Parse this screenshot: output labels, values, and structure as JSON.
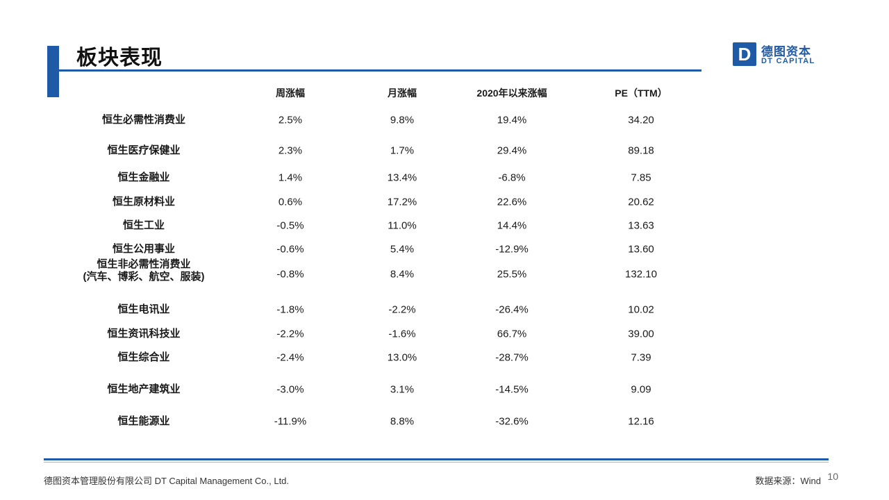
{
  "title": "板块表现",
  "logo": {
    "mark": "D",
    "cn": "德图资本",
    "en": "DT CAPITAL"
  },
  "headers": [
    "周涨幅",
    "月涨幅",
    "2020年以来涨幅",
    "PE（TTM）"
  ],
  "rows": [
    {
      "name": "恒生必需性消费业",
      "week": "2.5%",
      "month": "9.8%",
      "ytd": "19.4%",
      "pe": "34.20"
    },
    {
      "name": "恒生医疗保健业",
      "week": "2.3%",
      "month": "1.7%",
      "ytd": "29.4%",
      "pe": "89.18"
    },
    {
      "name": "恒生金融业",
      "week": "1.4%",
      "month": "13.4%",
      "ytd": "-6.8%",
      "pe": "7.85"
    },
    {
      "name": "恒生原材料业",
      "week": "0.6%",
      "month": "17.2%",
      "ytd": "22.6%",
      "pe": "20.62"
    },
    {
      "name": "恒生工业",
      "week": "-0.5%",
      "month": "11.0%",
      "ytd": "14.4%",
      "pe": "13.63"
    },
    {
      "name": "恒生公用事业",
      "week": "-0.6%",
      "month": "5.4%",
      "ytd": "-12.9%",
      "pe": "13.60"
    },
    {
      "name": "恒生非必需性消费业",
      "name2": "(汽车、博彩、航空、服装)",
      "week": "-0.8%",
      "month": "8.4%",
      "ytd": "25.5%",
      "pe": "132.10"
    },
    {
      "name": "恒生电讯业",
      "week": "-1.8%",
      "month": "-2.2%",
      "ytd": "-26.4%",
      "pe": "10.02"
    },
    {
      "name": "恒生资讯科技业",
      "week": "-2.2%",
      "month": "-1.6%",
      "ytd": "66.7%",
      "pe": "39.00"
    },
    {
      "name": "恒生综合业",
      "week": "-2.4%",
      "month": "13.0%",
      "ytd": "-28.7%",
      "pe": "7.39"
    },
    {
      "name": "恒生地产建筑业",
      "week": "-3.0%",
      "month": "3.1%",
      "ytd": "-14.5%",
      "pe": "9.09"
    },
    {
      "name": "恒生能源业",
      "week": "-11.9%",
      "month": "8.8%",
      "ytd": "-32.6%",
      "pe": "12.16"
    }
  ],
  "footer": {
    "company": "德图资本管理股份有限公司  DT Capital  Management  Co., Ltd.",
    "source": "数据来源：Wind",
    "page": "10"
  },
  "colors": {
    "accent": "#1f5aa6"
  }
}
